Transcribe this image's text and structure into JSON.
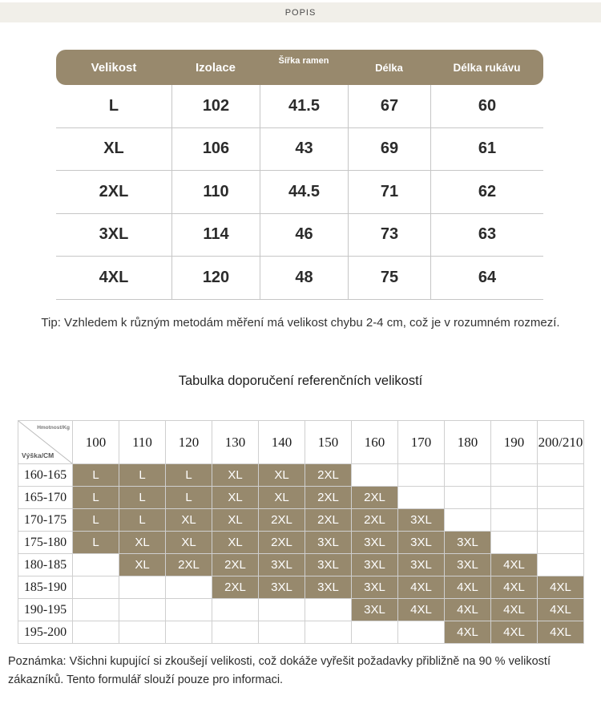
{
  "topbar": {
    "label": "POPIS"
  },
  "colors": {
    "khaki": "#97896d",
    "topbar_bg": "#f1efe9",
    "grid_line": "#cfcfcf",
    "header_text": "#ffffff",
    "body_text": "#2b2b2b"
  },
  "size_table": {
    "headers": [
      "Velikost",
      "Izolace",
      "Šířka ramen",
      "Délka",
      "Délka rukávu"
    ],
    "rows": [
      [
        "L",
        "102",
        "41.5",
        "67",
        "60"
      ],
      [
        "XL",
        "106",
        "43",
        "69",
        "61"
      ],
      [
        "2XL",
        "110",
        "44.5",
        "71",
        "62"
      ],
      [
        "3XL",
        "114",
        "46",
        "73",
        "63"
      ],
      [
        "4XL",
        "120",
        "48",
        "75",
        "64"
      ]
    ]
  },
  "tip": "Tip: Vzhledem k různým metodám měření má velikost chybu 2-4 cm, což je v rozumném rozmezí.",
  "reference_table": {
    "title": "Tabulka doporučení referenčních velikostí",
    "corner": {
      "top_right": "Hmotnost/Kg",
      "bottom_left": "Výška/CM"
    },
    "weight_columns": [
      "100",
      "110",
      "120",
      "130",
      "140",
      "150",
      "160",
      "170",
      "180",
      "190",
      "200/210"
    ],
    "rows": [
      {
        "height": "160-165",
        "cells": [
          "L",
          "L",
          "L",
          "XL",
          "XL",
          "2XL",
          "",
          "",
          "",
          "",
          ""
        ]
      },
      {
        "height": "165-170",
        "cells": [
          "L",
          "L",
          "L",
          "XL",
          "XL",
          "2XL",
          "2XL",
          "",
          "",
          "",
          ""
        ]
      },
      {
        "height": "170-175",
        "cells": [
          "L",
          "L",
          "XL",
          "XL",
          "2XL",
          "2XL",
          "2XL",
          "3XL",
          "",
          "",
          ""
        ]
      },
      {
        "height": "175-180",
        "cells": [
          "L",
          "XL",
          "XL",
          "XL",
          "2XL",
          "3XL",
          "3XL",
          "3XL",
          "3XL",
          "",
          ""
        ]
      },
      {
        "height": "180-185",
        "cells": [
          "",
          "XL",
          "2XL",
          "2XL",
          "3XL",
          "3XL",
          "3XL",
          "3XL",
          "3XL",
          "4XL",
          ""
        ]
      },
      {
        "height": "185-190",
        "cells": [
          "",
          "",
          "",
          "2XL",
          "3XL",
          "3XL",
          "3XL",
          "4XL",
          "4XL",
          "4XL",
          "4XL"
        ]
      },
      {
        "height": "190-195",
        "cells": [
          "",
          "",
          "",
          "",
          "",
          "",
          "3XL",
          "4XL",
          "4XL",
          "4XL",
          "4XL"
        ]
      },
      {
        "height": "195-200",
        "cells": [
          "",
          "",
          "",
          "",
          "",
          "",
          "",
          "",
          "4XL",
          "4XL",
          "4XL"
        ]
      }
    ]
  },
  "note": "Poznámka: Všichni kupující si zkoušejí velikosti, což dokáže vyřešit požadavky přibližně na 90 % velikostí zákazníků. Tento formulář slouží pouze pro informaci."
}
